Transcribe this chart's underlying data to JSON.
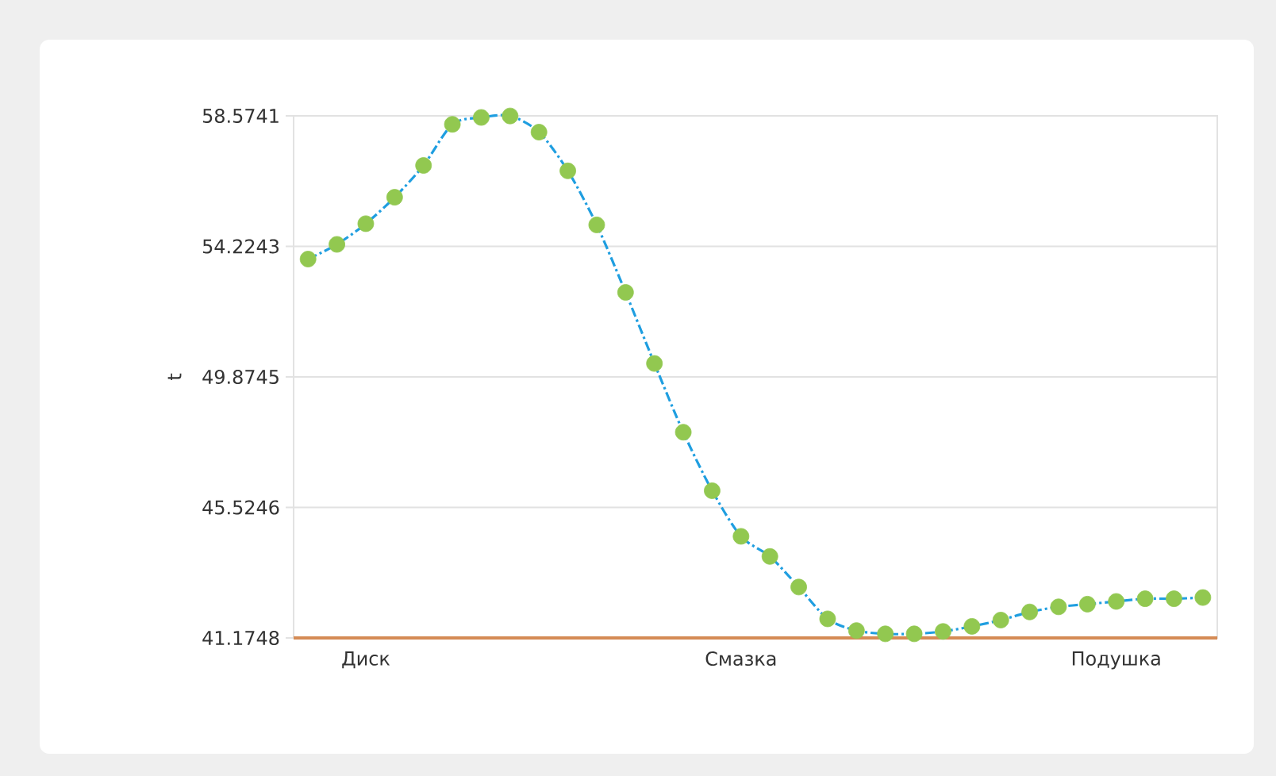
{
  "chart_data": {
    "type": "line",
    "ylabel": "t",
    "categories": [
      null,
      null,
      "Диск",
      null,
      null,
      null,
      null,
      null,
      null,
      null,
      null,
      null,
      null,
      null,
      null,
      "Смазка",
      null,
      null,
      null,
      null,
      null,
      null,
      null,
      null,
      null,
      null,
      null,
      null,
      "Подушка",
      null,
      null,
      null
    ],
    "series": [
      {
        "color": "#1f9ee0",
        "line_style": "dashed",
        "marker": "none",
        "values": [
          53.8,
          54.29,
          54.98,
          55.86,
          56.92,
          58.29,
          58.52,
          58.57,
          58.03,
          56.74,
          54.94,
          52.69,
          50.32,
          48.03,
          46.08,
          44.56,
          43.89,
          42.87,
          41.81,
          41.42,
          41.31,
          41.31,
          41.39,
          41.56,
          41.77,
          42.04,
          42.21,
          42.3,
          42.39,
          42.48,
          42.48,
          42.52
        ]
      },
      {
        "type": "scatter",
        "color": "#92c850",
        "marker": "circle",
        "values": [
          53.8,
          54.29,
          54.98,
          55.86,
          56.92,
          58.29,
          58.52,
          58.57,
          58.03,
          56.74,
          54.94,
          52.69,
          50.32,
          48.03,
          46.08,
          44.56,
          43.89,
          42.87,
          41.81,
          41.42,
          41.31,
          41.31,
          41.39,
          41.56,
          41.77,
          42.04,
          42.21,
          42.3,
          42.39,
          42.48,
          42.48,
          42.52
        ]
      }
    ],
    "ylim": [
      41.1748,
      58.5741
    ],
    "yticks": [
      41.1748,
      45.5246,
      49.8745,
      54.2243,
      58.5741
    ],
    "grid": "y"
  }
}
